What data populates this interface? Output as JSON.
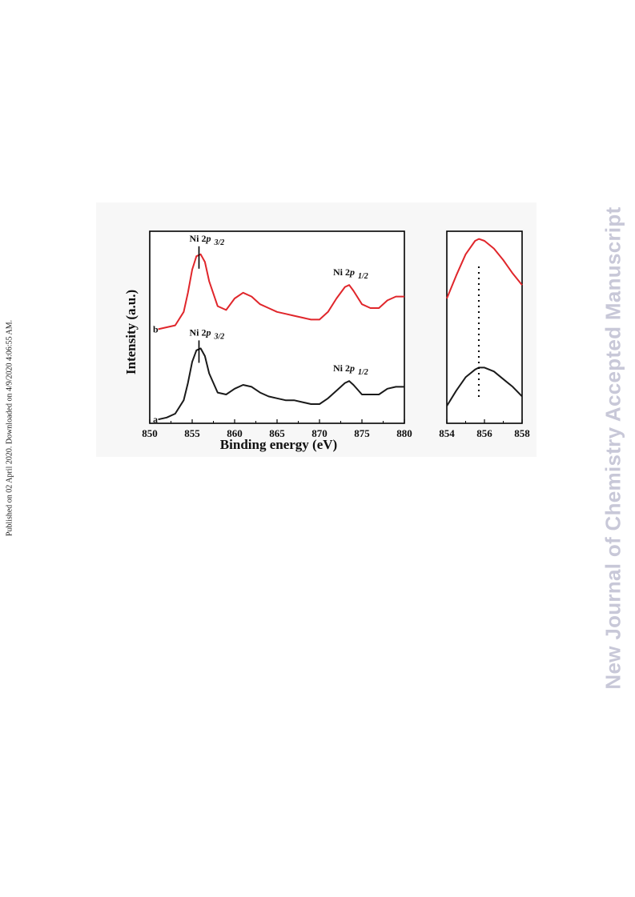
{
  "page": {
    "side_note": "Published on 02 April 2020. Downloaded on 4/9/2020 4:06:55 AM.",
    "watermark": "New Journal of Chemistry Accepted Manuscript"
  },
  "colors": {
    "series_a": "#1a1a1a",
    "series_b": "#e0262b",
    "axis": "#000000"
  },
  "chart_data": [
    {
      "type": "line",
      "xlabel": "Binding energy (eV)",
      "ylabel": "Intensity (a.u.)",
      "xlim": [
        850,
        880
      ],
      "ylim": [
        0,
        1
      ],
      "x_ticks": [
        "850",
        "855",
        "860",
        "865",
        "870",
        "875",
        "880"
      ],
      "grid": false,
      "series": [
        {
          "name": "a",
          "x": [
            851,
            852,
            853,
            854,
            854.5,
            855,
            855.5,
            856,
            856.5,
            857,
            858,
            859,
            860,
            861,
            862,
            863,
            864,
            865,
            866,
            867,
            868,
            869,
            870,
            871,
            872,
            873,
            873.5,
            874,
            875,
            876,
            877,
            878,
            879,
            880
          ],
          "y": [
            0.02,
            0.03,
            0.05,
            0.12,
            0.21,
            0.32,
            0.38,
            0.39,
            0.35,
            0.26,
            0.16,
            0.15,
            0.18,
            0.2,
            0.19,
            0.16,
            0.14,
            0.13,
            0.12,
            0.12,
            0.11,
            0.1,
            0.1,
            0.13,
            0.17,
            0.21,
            0.22,
            0.2,
            0.15,
            0.15,
            0.15,
            0.18,
            0.19,
            0.19
          ]
        },
        {
          "name": "b",
          "x": [
            851,
            852,
            853,
            854,
            854.5,
            855,
            855.5,
            856,
            856.5,
            857,
            858,
            859,
            860,
            861,
            862,
            863,
            864,
            865,
            866,
            867,
            868,
            869,
            870,
            871,
            872,
            873,
            873.5,
            874,
            875,
            876,
            877,
            878,
            879,
            880
          ],
          "y": [
            0.49,
            0.5,
            0.51,
            0.58,
            0.68,
            0.8,
            0.87,
            0.88,
            0.84,
            0.74,
            0.61,
            0.59,
            0.65,
            0.68,
            0.66,
            0.62,
            0.6,
            0.58,
            0.57,
            0.56,
            0.55,
            0.54,
            0.54,
            0.58,
            0.65,
            0.71,
            0.72,
            0.69,
            0.62,
            0.6,
            0.6,
            0.64,
            0.66,
            0.66
          ]
        }
      ],
      "curve_labels": [
        {
          "text": "a",
          "series": "a"
        },
        {
          "text": "b",
          "series": "b"
        }
      ],
      "annotations": [
        {
          "prefix": "Ni 2",
          "ital": "p",
          "sub": "3/2",
          "x": 855.8,
          "series": "b"
        },
        {
          "prefix": "Ni 2",
          "ital": "p",
          "sub": "1/2",
          "x": 873.3,
          "series": "b"
        },
        {
          "prefix": "Ni 2",
          "ital": "p",
          "sub": "3/2",
          "x": 855.8,
          "series": "a"
        },
        {
          "prefix": "Ni 2",
          "ital": "p",
          "sub": "1/2",
          "x": 873.3,
          "series": "a"
        }
      ]
    },
    {
      "type": "line",
      "xlim": [
        854,
        858
      ],
      "ylim": [
        0,
        1
      ],
      "x_ticks": [
        "854",
        "856",
        "858"
      ],
      "grid": false,
      "reference_line_x": 855.7,
      "series": [
        {
          "name": "a",
          "x": [
            854,
            854.5,
            855,
            855.5,
            855.7,
            856,
            856.5,
            857,
            857.5,
            858
          ],
          "y": [
            0.09,
            0.17,
            0.24,
            0.28,
            0.29,
            0.29,
            0.27,
            0.23,
            0.19,
            0.14
          ]
        },
        {
          "name": "b",
          "x": [
            854,
            854.5,
            855,
            855.5,
            855.7,
            856,
            856.5,
            857,
            857.5,
            858
          ],
          "y": [
            0.65,
            0.77,
            0.88,
            0.95,
            0.96,
            0.95,
            0.91,
            0.85,
            0.78,
            0.72
          ]
        }
      ]
    }
  ]
}
